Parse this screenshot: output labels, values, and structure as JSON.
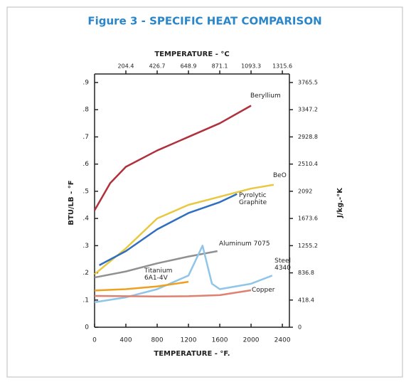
{
  "chart_data": {
    "type": "line",
    "title": "Figure 3 - SPECIFIC HEAT COMPARISON",
    "x_label": "TEMPERATURE - °F.",
    "x2_label": "TEMPERATURE - °C",
    "y_label": "BTU/LB - °F",
    "y2_label": "J/kg.-°K",
    "xlim": [
      0,
      2490
    ],
    "xticks": [
      0,
      400,
      800,
      1200,
      1600,
      2000,
      2400
    ],
    "x2lim": [
      -17.8,
      1365.6
    ],
    "x2ticks": [
      204.4,
      426.7,
      648.9,
      871.1,
      1093.3,
      1315.6
    ],
    "ylim": [
      0,
      0.9
    ],
    "yticks": [
      0,
      {
        "value": 0.1,
        "label": ".1"
      },
      {
        "value": 0.2,
        "label": ".2"
      },
      {
        "value": 0.3,
        "label": ".3"
      },
      {
        "value": 0.4,
        "label": ".4"
      },
      {
        "value": 0.5,
        "label": ".5"
      },
      {
        "value": 0.6,
        "label": ".6"
      },
      {
        "value": 0.7,
        "label": ".7"
      },
      {
        "value": 0.8,
        "label": ".8"
      },
      {
        "value": 0.9,
        "label": ".9"
      }
    ],
    "y2lim": [
      0,
      3765.5
    ],
    "y2ticks": [
      0,
      418.4,
      836.8,
      1255.2,
      1673.6,
      2092.0,
      2510.4,
      2928.8,
      3347.2,
      3765.5
    ],
    "series": [
      {
        "name": "Beryllium",
        "color": "#b0303c",
        "x": [
          0,
          200,
          400,
          800,
          1200,
          1600,
          2000
        ],
        "values": [
          0.43,
          0.53,
          0.59,
          0.65,
          0.7,
          0.75,
          0.815
        ]
      },
      {
        "name": "BeO",
        "color": "#e8c840",
        "x": [
          0,
          400,
          800,
          1200,
          1600,
          2000,
          2290
        ],
        "values": [
          0.195,
          0.29,
          0.4,
          0.45,
          0.48,
          0.51,
          0.524
        ]
      },
      {
        "name": "Pyrolytic Graphite",
        "color": "#2f6fc0",
        "x": [
          60,
          400,
          800,
          1200,
          1600,
          1820
        ],
        "values": [
          0.228,
          0.28,
          0.36,
          0.42,
          0.46,
          0.49
        ]
      },
      {
        "name": "Aluminum 7075",
        "color": "#909090",
        "x": [
          0,
          400,
          800,
          1200,
          1570
        ],
        "values": [
          0.183,
          0.205,
          0.235,
          0.26,
          0.28
        ]
      },
      {
        "name": "Steel 4340",
        "color": "#8ec5e8",
        "x": [
          0,
          400,
          800,
          1200,
          1380,
          1500,
          1600,
          2000,
          2270
        ],
        "values": [
          0.092,
          0.11,
          0.14,
          0.19,
          0.3,
          0.16,
          0.14,
          0.16,
          0.19
        ]
      },
      {
        "name": "Titanium 6A1-4V",
        "color": "#f0a020",
        "x": [
          0,
          400,
          800,
          1200
        ],
        "values": [
          0.135,
          0.14,
          0.15,
          0.167
        ]
      },
      {
        "name": "Copper",
        "color": "#e08070",
        "x": [
          0,
          400,
          800,
          1200,
          1600,
          2000
        ],
        "values": [
          0.115,
          0.114,
          0.113,
          0.114,
          0.118,
          0.136
        ]
      }
    ]
  }
}
